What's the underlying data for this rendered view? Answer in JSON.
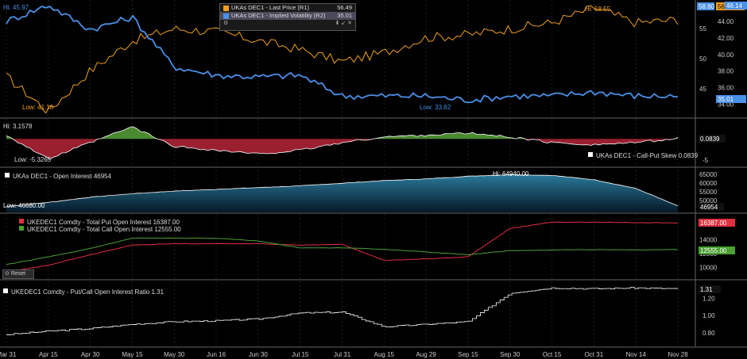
{
  "panels": {
    "p1": {
      "legend": [
        {
          "label": "UKAs DEC1 - Last Price (R1)",
          "value": "56.49",
          "color": "#f0a020"
        },
        {
          "label": "UKAs DEC1 - Implied Volatility (R2)",
          "value": "35.01",
          "color": "#4a90e8"
        }
      ],
      "hi_orange": "Hi: 58.55",
      "hi_blue": "Hi: 45.97",
      "low_orange": "Low: 41.18",
      "low_blue": "Low: 33.82",
      "right_axis_r1": [
        "55",
        "50",
        "45"
      ],
      "right_axis_r2": [
        "44.00",
        "42.00",
        "40.00",
        "38.00",
        "36.00",
        "34.00"
      ],
      "tag_r1": "56.49",
      "tag_r2": "35.01",
      "tag_top_left": "58.80",
      "tag_top_right": "46.14"
    },
    "p2": {
      "legend": "UKAs DEC1 - Call-Put Skew 0.0839",
      "hi": "Hi: 3.1578",
      "low": "Low: -5.3265",
      "axis": [
        "-5"
      ],
      "tag": "0.0839"
    },
    "p3": {
      "legend": "UKAs DEC1 - Open Interest 46954",
      "hi": "Hi: 64940.00",
      "low": "Low: 46680.00",
      "axis": [
        "65000",
        "60000",
        "55000",
        "50000"
      ],
      "tag": "46954"
    },
    "p4": {
      "legend_put": "UKEDEC1 Comdty - Total Put Open Interest 16387.00",
      "legend_call": "UKEDEC1 Comdty - Total Call Open Interest 12555.00",
      "axis": [
        "14000",
        "12000",
        "10000"
      ],
      "tag_put": "16387.00",
      "tag_call": "12555.00",
      "reset": "Reset"
    },
    "p5": {
      "legend": "UKEDEC1 Comdty - Put/Call Open Interest Ratio 1.31",
      "axis": [
        "1.20",
        "1.00",
        "0.80"
      ],
      "tag": "1.31"
    }
  },
  "x_axis": [
    "Mar 31",
    "Apr 15",
    "Apr 30",
    "May 15",
    "May 30",
    "Jun 16",
    "Jun 30",
    "Jul 15",
    "Jul 31",
    "Aug 15",
    "Aug 29",
    "Sep 15",
    "Sep 30",
    "Oct 15",
    "Oct 31",
    "Nov 14",
    "Nov 28"
  ],
  "chart_data": [
    {
      "type": "line",
      "series": [
        {
          "name": "UKAs DEC1 - Last Price (R1)",
          "axis": "R1",
          "color": "#f0a020",
          "x": [
            "Mar 31",
            "Apr 15",
            "Apr 30",
            "May 15",
            "May 30",
            "Jun 16",
            "Jun 30",
            "Jul 15",
            "Jul 31",
            "Aug 15",
            "Aug 29",
            "Sep 15",
            "Sep 30",
            "Oct 15",
            "Oct 31",
            "Nov 14",
            "Nov 28"
          ],
          "values": [
            47,
            41.2,
            48,
            53,
            55,
            54.5,
            53,
            51.5,
            49.5,
            51,
            53.5,
            54,
            55,
            56,
            58.5,
            56,
            56.5
          ]
        },
        {
          "name": "UKAs DEC1 - Implied Volatility (R2)",
          "axis": "R2",
          "color": "#4a90e8",
          "x": [
            "Mar 31",
            "Apr 15",
            "Apr 30",
            "May 15",
            "May 30",
            "Jun 16",
            "Jun 30",
            "Jul 15",
            "Jul 31",
            "Aug 15",
            "Aug 29",
            "Sep 15",
            "Sep 30",
            "Oct 15",
            "Oct 31",
            "Nov 14",
            "Nov 28"
          ],
          "values": [
            44,
            45.97,
            43,
            44.5,
            38.5,
            37.5,
            37.3,
            37.5,
            35,
            35,
            35,
            34.5,
            35,
            35,
            35.5,
            35,
            35.01
          ]
        }
      ],
      "r1_ylim": [
        41,
        59
      ],
      "r2_ylim": [
        33,
        46
      ]
    },
    {
      "type": "area",
      "name": "UKAs DEC1 - Call-Put Skew",
      "x": [
        "Mar 31",
        "Apr 15",
        "Apr 30",
        "May 15",
        "May 30",
        "Jun 16",
        "Jun 30",
        "Jul 15",
        "Jul 31",
        "Aug 15",
        "Aug 29",
        "Sep 15",
        "Sep 30",
        "Oct 15",
        "Oct 31",
        "Nov 14",
        "Nov 28"
      ],
      "values": [
        1,
        -5.3,
        -1,
        3.1578,
        -2,
        -3,
        -4,
        -3,
        -1,
        0.5,
        1,
        1.5,
        0.5,
        -1,
        -1.5,
        -1,
        0.0839
      ],
      "ylim": [
        -6,
        4
      ]
    },
    {
      "type": "area",
      "name": "UKAs DEC1 - Open Interest",
      "x": [
        "Mar 31",
        "Apr 15",
        "Apr 30",
        "May 15",
        "May 30",
        "Jun 16",
        "Jun 30",
        "Jul 15",
        "Jul 31",
        "Aug 15",
        "Aug 29",
        "Sep 15",
        "Sep 30",
        "Oct 15",
        "Oct 31",
        "Nov 14",
        "Nov 28"
      ],
      "values": [
        46680,
        49000,
        52000,
        54000,
        55500,
        56500,
        57500,
        58500,
        60000,
        61500,
        62500,
        64000,
        64940,
        64500,
        62000,
        57000,
        46954
      ],
      "ylim": [
        46000,
        66000
      ]
    },
    {
      "type": "line",
      "series": [
        {
          "name": "UKEDEC1 Comdty - Total Put Open Interest",
          "color": "#e03040",
          "x": [
            "Mar 31",
            "Apr 15",
            "Apr 30",
            "May 15",
            "May 30",
            "Jun 16",
            "Jun 30",
            "Jul 15",
            "Jul 31",
            "Aug 15",
            "Aug 29",
            "Sep 15",
            "Sep 30",
            "Oct 15",
            "Oct 31",
            "Nov 14",
            "Nov 28"
          ],
          "values": [
            9300,
            10300,
            11800,
            13200,
            13400,
            13400,
            13400,
            13200,
            13300,
            11000,
            11200,
            11500,
            15600,
            16500,
            16500,
            16450,
            16387
          ]
        },
        {
          "name": "UKEDEC1 Comdty - Total Call Open Interest",
          "color": "#4aa030",
          "x": [
            "Mar 31",
            "Apr 15",
            "Apr 30",
            "May 15",
            "May 30",
            "Jun 16",
            "Jun 30",
            "Jul 15",
            "Jul 31",
            "Aug 15",
            "Aug 29",
            "Sep 15",
            "Sep 30",
            "Oct 15",
            "Oct 31",
            "Nov 14",
            "Nov 28"
          ],
          "values": [
            10400,
            11500,
            12700,
            14200,
            14200,
            14200,
            13800,
            12800,
            12800,
            12600,
            12200,
            11800,
            12400,
            12500,
            12550,
            12500,
            12555
          ]
        }
      ],
      "ylim": [
        9000,
        17000
      ]
    },
    {
      "type": "line",
      "series": [
        {
          "name": "UKEDEC1 Comdty - Put/Call Open Interest Ratio",
          "color": "#e0e0e0",
          "x": [
            "Mar 31",
            "Apr 15",
            "Apr 30",
            "May 15",
            "May 30",
            "Jun 16",
            "Jun 30",
            "Jul 15",
            "Jul 31",
            "Aug 15",
            "Aug 29",
            "Sep 15",
            "Sep 30",
            "Oct 15",
            "Oct 31",
            "Nov 14",
            "Nov 28"
          ],
          "values": [
            0.78,
            0.82,
            0.85,
            0.9,
            0.93,
            0.94,
            0.96,
            1.03,
            1.04,
            0.87,
            0.9,
            0.93,
            1.26,
            1.32,
            1.31,
            1.32,
            1.31
          ]
        }
      ],
      "ylim": [
        0.7,
        1.35
      ]
    }
  ]
}
